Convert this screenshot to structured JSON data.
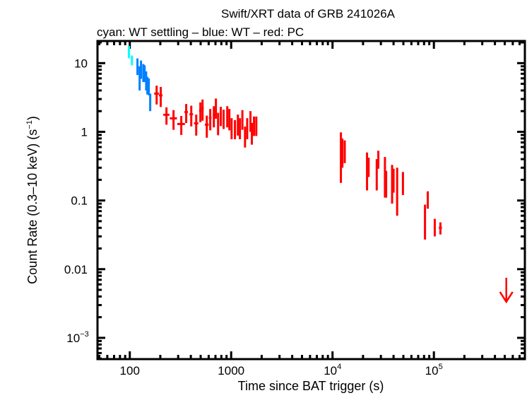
{
  "chart_data": {
    "type": "scatter",
    "title": "Swift/XRT data of GRB 241026A",
    "subtitle": "cyan: WT settling – blue: WT – red: PC",
    "xlabel": "Time since BAT trigger (s)",
    "ylabel": "Count Rate (0.3–10 keV) (s",
    "ylabel_sup": "−1",
    "ylabel_end": ")",
    "x_scale": "log",
    "y_scale": "log",
    "xlim": [
      48,
      790000
    ],
    "ylim": [
      0.00049,
      21
    ],
    "grid": false,
    "x_ticks": [
      {
        "value": 100,
        "label": "100"
      },
      {
        "value": 1000,
        "label": "1000"
      },
      {
        "value": 10000,
        "label": "10",
        "sup": "4"
      },
      {
        "value": 100000,
        "label": "10",
        "sup": "5"
      }
    ],
    "y_ticks": [
      {
        "value": 10,
        "label": "10"
      },
      {
        "value": 1,
        "label": "1"
      },
      {
        "value": 0.1,
        "label": "0.1"
      },
      {
        "value": 0.01,
        "label": "0.01"
      },
      {
        "value": 0.001,
        "label": "10",
        "sup": "−3"
      }
    ],
    "point_format": [
      "time",
      "time_err",
      "rate",
      "rate_err"
    ],
    "series": [
      {
        "mode": "WT settling",
        "color": "#00ffff",
        "points": [
          [
            98,
            1.5,
            14.8,
            3.0
          ],
          [
            105,
            1.5,
            11.1,
            1.8
          ]
        ]
      },
      {
        "mode": "WT",
        "color": "#0080ff",
        "points": [
          [
            119,
            2,
            9.2,
            2.5
          ],
          [
            125,
            2,
            6.5,
            2.5
          ],
          [
            129,
            2,
            8.4,
            2.5
          ],
          [
            136,
            2,
            7.5,
            2.2
          ],
          [
            140,
            2,
            7.3,
            2.0
          ],
          [
            145,
            2,
            5.8,
            1.8
          ],
          [
            149,
            2,
            4.9,
            1.4
          ],
          [
            154,
            2,
            4.7,
            1.3
          ],
          [
            159,
            3,
            2.8,
            0.8
          ]
        ]
      },
      {
        "mode": "PC",
        "color": "#ff0000",
        "points": [
          [
            184,
            10,
            3.6,
            1.1
          ],
          [
            202,
            8,
            3.4,
            1.1
          ],
          [
            230,
            16,
            1.77,
            0.5
          ],
          [
            270,
            22,
            1.57,
            0.5
          ],
          [
            322,
            28,
            1.3,
            0.4
          ],
          [
            360,
            14,
            1.94,
            0.6
          ],
          [
            404,
            16,
            1.8,
            0.6
          ],
          [
            452,
            22,
            1.33,
            0.45
          ],
          [
            497,
            14,
            2.03,
            0.65
          ],
          [
            522,
            14,
            2.2,
            0.75
          ],
          [
            575,
            25,
            1.27,
            0.45
          ],
          [
            622,
            18,
            1.6,
            0.55
          ],
          [
            675,
            18,
            1.76,
            0.6
          ],
          [
            707,
            10,
            2.3,
            0.75
          ],
          [
            743,
            16,
            1.39,
            0.5
          ],
          [
            790,
            18,
            1.76,
            0.55
          ],
          [
            842,
            18,
            1.6,
            0.5
          ],
          [
            915,
            18,
            1.76,
            0.6
          ],
          [
            960,
            14,
            1.6,
            0.55
          ],
          [
            1010,
            18,
            1.18,
            0.4
          ],
          [
            1090,
            20,
            1.13,
            0.35
          ],
          [
            1165,
            20,
            1.33,
            0.45
          ],
          [
            1220,
            18,
            1.18,
            0.4
          ],
          [
            1290,
            18,
            1.57,
            0.5
          ],
          [
            1370,
            20,
            0.89,
            0.3
          ],
          [
            1440,
            20,
            1.18,
            0.4
          ],
          [
            1550,
            20,
            1.5,
            0.5
          ],
          [
            1600,
            18,
            1.0,
            0.35
          ],
          [
            1680,
            20,
            1.27,
            0.4
          ],
          [
            1770,
            22,
            1.27,
            0.4
          ],
          [
            12100,
            150,
            0.58,
            0.4
          ],
          [
            12500,
            150,
            0.55,
            0.25
          ],
          [
            13200,
            150,
            0.55,
            0.2
          ],
          [
            21900,
            300,
            0.32,
            0.18
          ],
          [
            22700,
            300,
            0.32,
            0.1
          ],
          [
            27300,
            300,
            0.27,
            0.13
          ],
          [
            28300,
            300,
            0.41,
            0.12
          ],
          [
            32900,
            300,
            0.27,
            0.16
          ],
          [
            33800,
            300,
            0.19,
            0.08
          ],
          [
            38700,
            300,
            0.21,
            0.12
          ],
          [
            40000,
            300,
            0.21,
            0.08
          ],
          [
            43400,
            300,
            0.18,
            0.12
          ],
          [
            49500,
            400,
            0.19,
            0.07
          ],
          [
            81700,
            800,
            0.057,
            0.03
          ],
          [
            87000,
            800,
            0.106,
            0.03
          ],
          [
            102000,
            700,
            0.042,
            0.012
          ],
          [
            116000,
            4000,
            0.04,
            0.008
          ]
        ]
      }
    ],
    "upper_limits": [
      {
        "mode": "PC",
        "color": "#ff0000",
        "time": 518000,
        "rate": 0.0075
      }
    ]
  }
}
